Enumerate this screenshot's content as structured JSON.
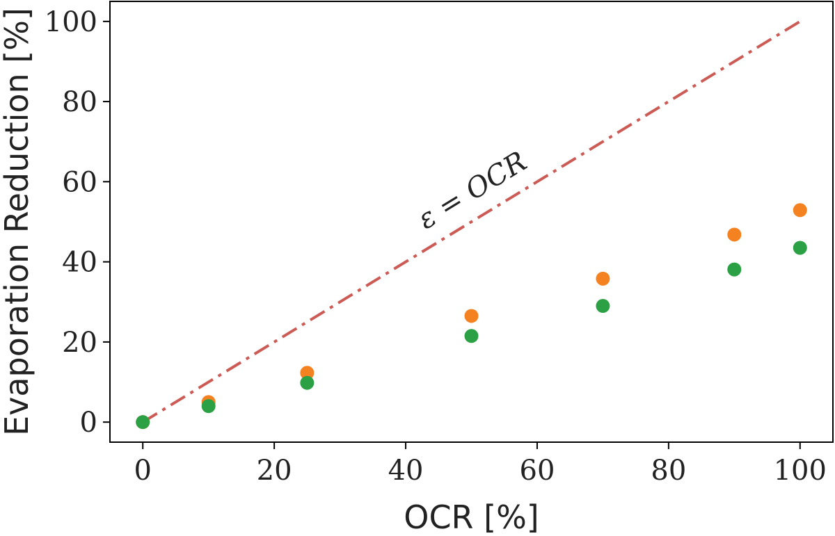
{
  "chart_data": {
    "type": "scatter",
    "xlabel": "OCR [%]",
    "ylabel": "Evaporation Reduction [%]",
    "xlim": [
      -5,
      105
    ],
    "ylim": [
      -5,
      105
    ],
    "xticks": [
      0,
      20,
      40,
      60,
      80,
      100
    ],
    "yticks": [
      0,
      20,
      40,
      60,
      80,
      100
    ],
    "xtick_labels": [
      "0",
      "20",
      "40",
      "60",
      "80",
      "100"
    ],
    "ytick_labels": [
      "0",
      "20",
      "40",
      "60",
      "80",
      "100"
    ],
    "grid": false,
    "series": [
      {
        "color": "#f58220",
        "x": [
          0,
          10,
          25,
          50,
          70,
          90,
          100
        ],
        "y": [
          0,
          5,
          12.3,
          26.5,
          35.8,
          46.8,
          52.9
        ]
      },
      {
        "color": "#2ca044",
        "x": [
          0,
          10,
          25,
          50,
          70,
          90,
          100
        ],
        "y": [
          0,
          4,
          9.8,
          21.5,
          29,
          38.1,
          43.5
        ]
      }
    ],
    "reference_line": {
      "x": [
        0,
        100
      ],
      "y": [
        0,
        100
      ],
      "color": "#cc5a55",
      "style": "dash-dot",
      "label": "ε = OCR"
    }
  }
}
